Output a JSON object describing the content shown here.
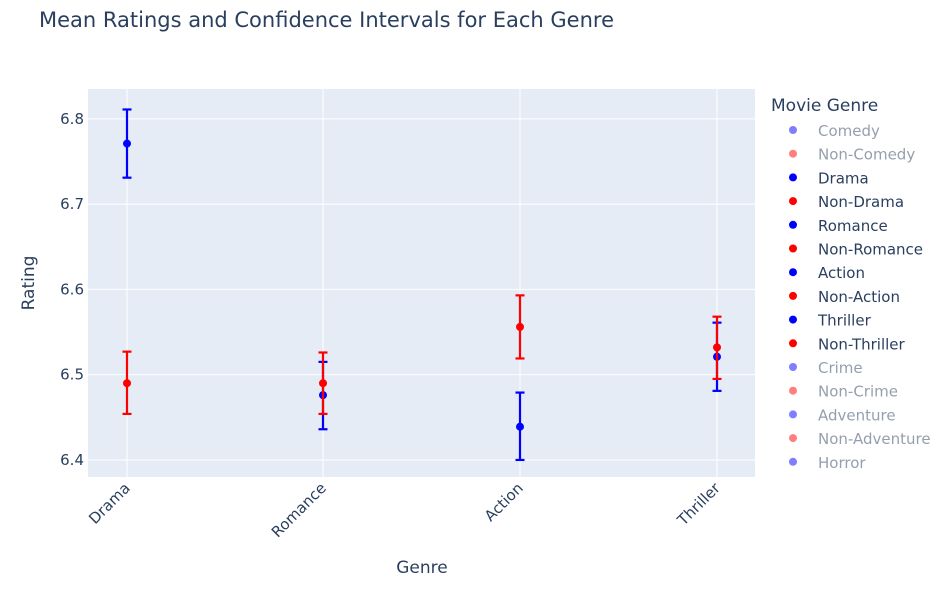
{
  "chart_data": {
    "type": "scatter",
    "title": "Mean Ratings and Confidence Intervals for Each Genre",
    "xlabel": "Genre",
    "ylabel": "Rating",
    "categories": [
      "Drama",
      "Romance",
      "Action",
      "Thriller"
    ],
    "ylim": [
      6.38,
      6.835
    ],
    "yticks": [
      6.4,
      6.5,
      6.6,
      6.7,
      6.8
    ],
    "grid": true,
    "legend_title": "Movie Genre",
    "legend_position": "right",
    "colors": {
      "genre": "#0000ff",
      "non_genre": "#ff0000",
      "plot_bg": "#e5ecf6",
      "grid": "#ffffff",
      "text": "#2a3f5f"
    },
    "series": [
      {
        "name": "Drama",
        "group": "genre",
        "category": "Drama",
        "mean": 6.771,
        "lower": 6.731,
        "upper": 6.811
      },
      {
        "name": "Non-Drama",
        "group": "non_genre",
        "category": "Drama",
        "mean": 6.49,
        "lower": 6.454,
        "upper": 6.527
      },
      {
        "name": "Romance",
        "group": "genre",
        "category": "Romance",
        "mean": 6.476,
        "lower": 6.436,
        "upper": 6.515
      },
      {
        "name": "Non-Romance",
        "group": "non_genre",
        "category": "Romance",
        "mean": 6.49,
        "lower": 6.454,
        "upper": 6.526
      },
      {
        "name": "Action",
        "group": "genre",
        "category": "Action",
        "mean": 6.439,
        "lower": 6.4,
        "upper": 6.479
      },
      {
        "name": "Non-Action",
        "group": "non_genre",
        "category": "Action",
        "mean": 6.556,
        "lower": 6.519,
        "upper": 6.593
      },
      {
        "name": "Thriller",
        "group": "genre",
        "category": "Thriller",
        "mean": 6.521,
        "lower": 6.481,
        "upper": 6.561
      },
      {
        "name": "Non-Thriller",
        "group": "non_genre",
        "category": "Thriller",
        "mean": 6.532,
        "lower": 6.495,
        "upper": 6.568
      }
    ],
    "legend": [
      {
        "label": "Comedy",
        "group": "genre",
        "active": false
      },
      {
        "label": "Non-Comedy",
        "group": "non_genre",
        "active": false
      },
      {
        "label": "Drama",
        "group": "genre",
        "active": true
      },
      {
        "label": "Non-Drama",
        "group": "non_genre",
        "active": true
      },
      {
        "label": "Romance",
        "group": "genre",
        "active": true
      },
      {
        "label": "Non-Romance",
        "group": "non_genre",
        "active": true
      },
      {
        "label": "Action",
        "group": "genre",
        "active": true
      },
      {
        "label": "Non-Action",
        "group": "non_genre",
        "active": true
      },
      {
        "label": "Thriller",
        "group": "genre",
        "active": true
      },
      {
        "label": "Non-Thriller",
        "group": "non_genre",
        "active": true
      },
      {
        "label": "Crime",
        "group": "genre",
        "active": false
      },
      {
        "label": "Non-Crime",
        "group": "non_genre",
        "active": false
      },
      {
        "label": "Adventure",
        "group": "genre",
        "active": false
      },
      {
        "label": "Non-Adventure",
        "group": "non_genre",
        "active": false
      },
      {
        "label": "Horror",
        "group": "genre",
        "active": false
      }
    ]
  }
}
